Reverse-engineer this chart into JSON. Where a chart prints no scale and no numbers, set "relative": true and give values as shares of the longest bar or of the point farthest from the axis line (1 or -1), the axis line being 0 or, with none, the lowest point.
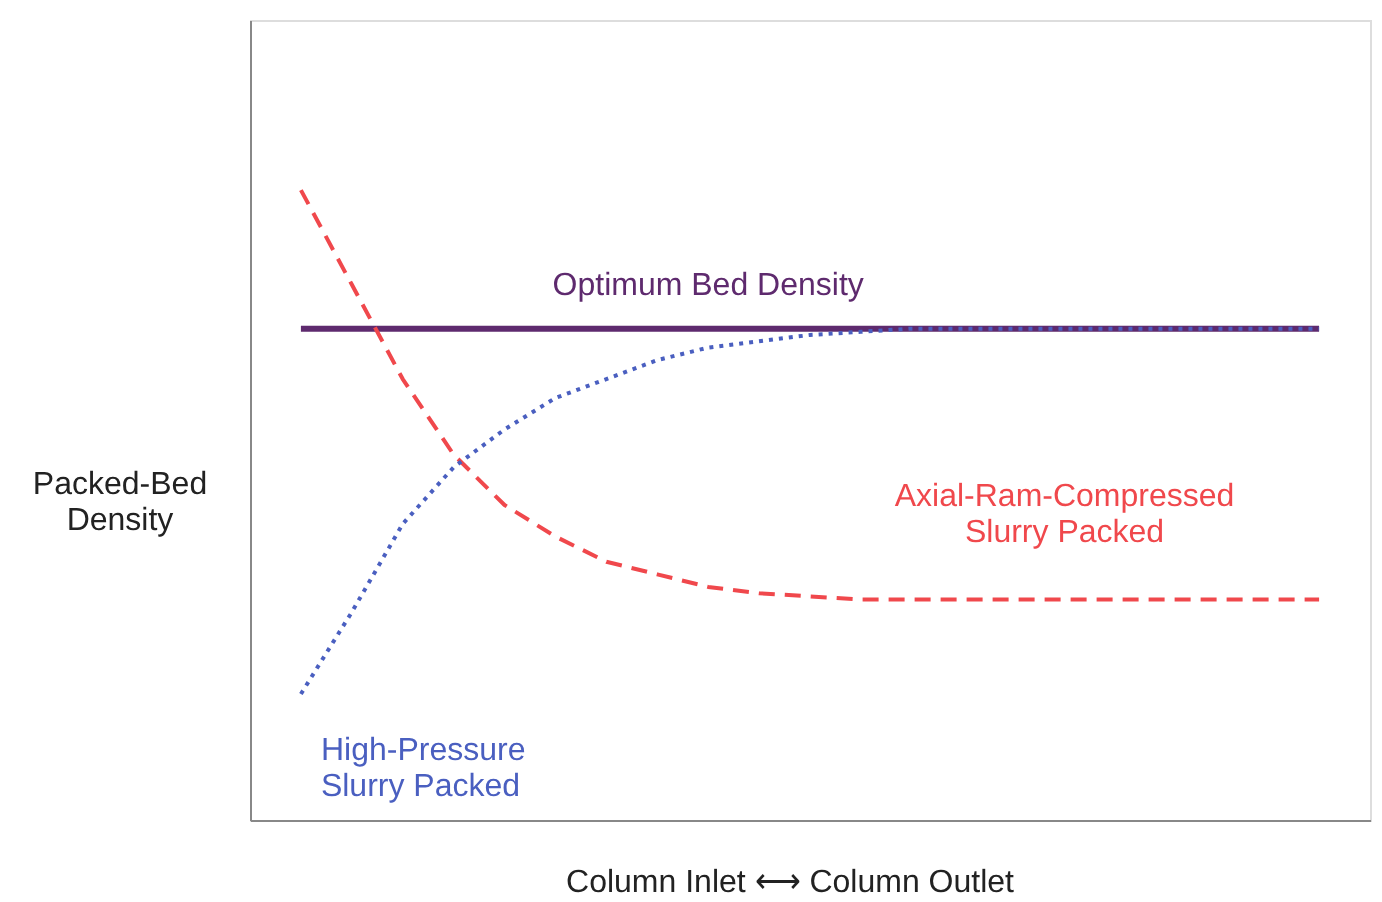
{
  "chart_data": {
    "type": "line",
    "relative": true,
    "xlabel": "Column Inlet ⟷ Column Outlet",
    "ylabel": "Packed-Bed\nDensity",
    "legend": false,
    "grid": false,
    "categories": [
      null,
      null,
      null,
      null,
      null,
      null,
      null,
      null,
      null,
      null,
      null,
      null,
      null,
      null,
      null,
      null,
      null,
      null,
      null,
      null,
      null
    ],
    "series": [
      {
        "name": "Optimum Bed Density",
        "color": "#5e2a6e",
        "line_style": "solid",
        "values": [
          0.78,
          0.78,
          0.78,
          0.78,
          0.78,
          0.78,
          0.78,
          0.78,
          0.78,
          0.78,
          0.78,
          0.78,
          0.78,
          0.78,
          0.78,
          0.78,
          0.78,
          0.78,
          0.78,
          0.78,
          0.78
        ]
      },
      {
        "name": "Axial-Ram-Compressed\nSlurry Packed",
        "color": "#f0484c",
        "line_style": "dashed",
        "values": [
          1.0,
          0.85,
          0.7,
          0.58,
          0.5,
          0.45,
          0.41,
          0.39,
          0.37,
          0.36,
          0.355,
          0.35,
          0.35,
          0.35,
          0.35,
          0.35,
          0.35,
          0.35,
          0.35,
          0.35,
          0.35
        ]
      },
      {
        "name": "High-Pressure\nSlurry Packed",
        "color": "#4a5fc0",
        "line_style": "dotted",
        "values": [
          0.2,
          0.33,
          0.47,
          0.56,
          0.62,
          0.67,
          0.7,
          0.73,
          0.75,
          0.76,
          0.77,
          0.775,
          0.78,
          0.78,
          0.78,
          0.78,
          0.78,
          0.78,
          0.78,
          0.78,
          0.78
        ]
      }
    ]
  }
}
